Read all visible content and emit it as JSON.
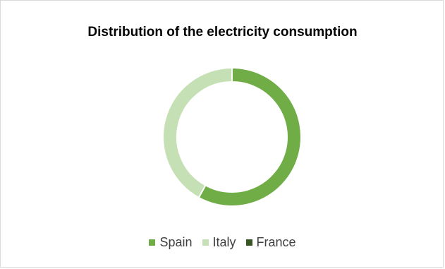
{
  "chart_data": {
    "type": "pie",
    "variant": "donut",
    "title": "Distribution of the electricity consumption",
    "categories": [
      "Spain",
      "Italy",
      "France"
    ],
    "values": [
      58,
      42,
      0
    ],
    "unit": "percent",
    "colors": [
      "#70ad47",
      "#c5e0b4",
      "#375623"
    ],
    "legend_position": "bottom"
  }
}
